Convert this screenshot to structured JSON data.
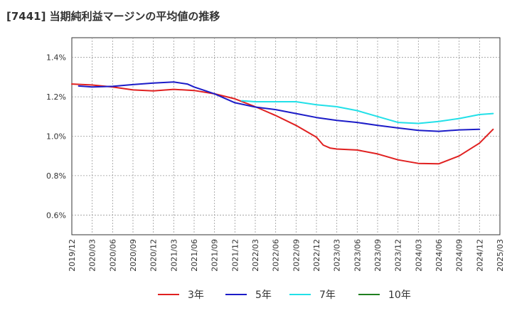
{
  "chart_data": {
    "type": "line",
    "title": "[7441]  当期純利益マージンの平均値の推移",
    "xlabel": "",
    "ylabel": "",
    "x_ticks": [
      "2019/12",
      "2020/03",
      "2020/06",
      "2020/09",
      "2020/12",
      "2021/03",
      "2021/06",
      "2021/09",
      "2021/12",
      "2022/03",
      "2022/06",
      "2022/09",
      "2022/12",
      "2023/03",
      "2023/06",
      "2023/09",
      "2023/12",
      "2024/03",
      "2024/06",
      "2024/09",
      "2024/12",
      "2025/03"
    ],
    "y_ticks": [
      "0.6%",
      "0.8%",
      "1.0%",
      "1.2%",
      "1.4%"
    ],
    "y_tick_values": [
      0.6,
      0.8,
      1.0,
      1.2,
      1.4
    ],
    "ylim": [
      0.5,
      1.5
    ],
    "x_range": [
      "2019/12",
      "2025/03"
    ],
    "grid": true,
    "legend_position": "bottom",
    "series": [
      {
        "name": "3年",
        "color": "#e02020",
        "points": [
          [
            "2019/12",
            1.265
          ],
          [
            "2020/03",
            1.26
          ],
          [
            "2020/06",
            1.25
          ],
          [
            "2020/09",
            1.235
          ],
          [
            "2020/12",
            1.23
          ],
          [
            "2021/03",
            1.238
          ],
          [
            "2021/06",
            1.232
          ],
          [
            "2021/09",
            1.215
          ],
          [
            "2021/12",
            1.19
          ],
          [
            "2022/03",
            1.15
          ],
          [
            "2022/06",
            1.105
          ],
          [
            "2022/09",
            1.055
          ],
          [
            "2022/12",
            0.995
          ],
          [
            "2023/01",
            0.955
          ],
          [
            "2023/02",
            0.94
          ],
          [
            "2023/03",
            0.935
          ],
          [
            "2023/06",
            0.93
          ],
          [
            "2023/09",
            0.91
          ],
          [
            "2023/12",
            0.88
          ],
          [
            "2024/03",
            0.862
          ],
          [
            "2024/06",
            0.86
          ],
          [
            "2024/09",
            0.9
          ],
          [
            "2024/12",
            0.965
          ],
          [
            "2025/02",
            1.035
          ]
        ]
      },
      {
        "name": "5年",
        "color": "#1c1cc8",
        "points": [
          [
            "2020/01",
            1.255
          ],
          [
            "2020/03",
            1.25
          ],
          [
            "2020/06",
            1.253
          ],
          [
            "2020/09",
            1.262
          ],
          [
            "2020/12",
            1.27
          ],
          [
            "2021/03",
            1.275
          ],
          [
            "2021/05",
            1.265
          ],
          [
            "2021/06",
            1.25
          ],
          [
            "2021/09",
            1.215
          ],
          [
            "2021/12",
            1.17
          ],
          [
            "2022/03",
            1.148
          ],
          [
            "2022/06",
            1.135
          ],
          [
            "2022/09",
            1.115
          ],
          [
            "2022/12",
            1.095
          ],
          [
            "2023/03",
            1.08
          ],
          [
            "2023/06",
            1.07
          ],
          [
            "2023/09",
            1.055
          ],
          [
            "2023/12",
            1.042
          ],
          [
            "2024/03",
            1.03
          ],
          [
            "2024/06",
            1.025
          ],
          [
            "2024/09",
            1.032
          ],
          [
            "2024/12",
            1.035
          ]
        ]
      },
      {
        "name": "7年",
        "color": "#22e0e8",
        "points": [
          [
            "2022/01",
            1.18
          ],
          [
            "2022/03",
            1.175
          ],
          [
            "2022/06",
            1.175
          ],
          [
            "2022/09",
            1.175
          ],
          [
            "2022/12",
            1.16
          ],
          [
            "2023/03",
            1.15
          ],
          [
            "2023/06",
            1.13
          ],
          [
            "2023/09",
            1.1
          ],
          [
            "2023/12",
            1.07
          ],
          [
            "2024/03",
            1.065
          ],
          [
            "2024/06",
            1.075
          ],
          [
            "2024/09",
            1.09
          ],
          [
            "2024/12",
            1.11
          ],
          [
            "2025/02",
            1.115
          ]
        ]
      },
      {
        "name": "10年",
        "color": "#208020",
        "points": []
      }
    ]
  }
}
